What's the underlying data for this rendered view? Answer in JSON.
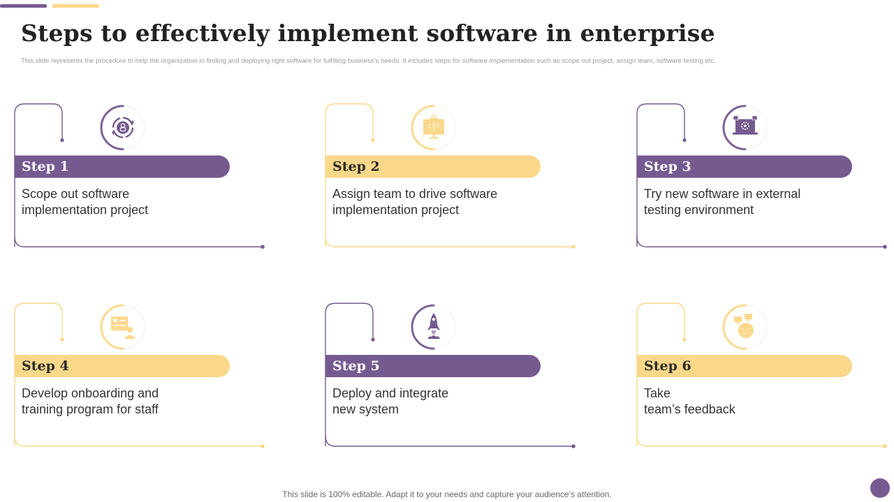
{
  "colors": {
    "purple": "#755A8F",
    "yellow": "#FAD88A",
    "purple_text": "#FFFFFF",
    "yellow_text": "#2A2A2A"
  },
  "header": {
    "title": "Steps to effectively implement software in enterprise",
    "subtitle": "This slide represents the procedure to help the organization in finding and deploying right software for fulfilling business’s needs. It includes steps for software implementation such as scope out project, assign team, software testing etc."
  },
  "steps": [
    {
      "label": "Step 1",
      "description": "Scope out software\nimplementation project",
      "theme": "purple",
      "icon": "process-cycle-icon"
    },
    {
      "label": "Step 2",
      "description": "Assign team to drive software\nimplementation project",
      "theme": "yellow",
      "icon": "team-monitor-icon"
    },
    {
      "label": "Step 3",
      "description": "Try new software in external\ntesting environment",
      "theme": "purple",
      "icon": "laptop-gear-icon"
    },
    {
      "label": "Step 4",
      "description": "Develop onboarding and\ntraining program for staff",
      "theme": "yellow",
      "icon": "training-board-icon"
    },
    {
      "label": "Step 5",
      "description": "Deploy and integrate\nnew system",
      "theme": "purple",
      "icon": "rocket-launch-icon"
    },
    {
      "label": "Step 6",
      "description": "Take\nteam’s feedback",
      "theme": "yellow",
      "icon": "feedback-chat-icon"
    }
  ],
  "footer": {
    "text": "This slide is 100% editable. Adapt it to your needs and capture your audience’s attention."
  }
}
